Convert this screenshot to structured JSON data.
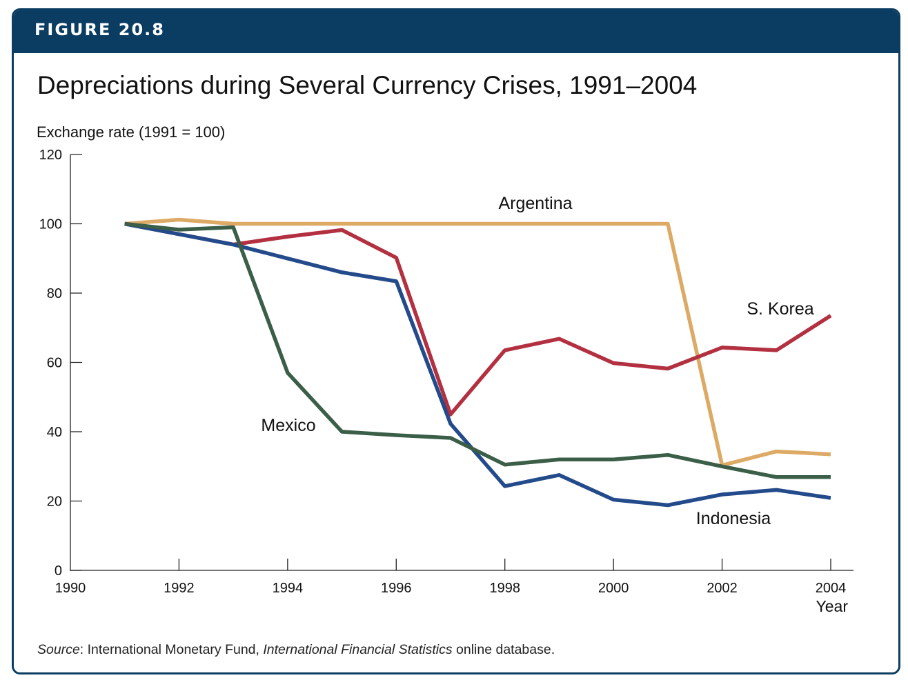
{
  "header": {
    "figure_label": "FIGURE 20.8"
  },
  "chart_data": {
    "type": "line",
    "title": "Depreciations during Several Currency Crises, 1991–2004",
    "ylabel": "Exchange rate (1991 = 100)",
    "xlabel": "Year",
    "xlim": [
      1990,
      2004
    ],
    "ylim": [
      0,
      120
    ],
    "x_ticks": [
      "1990",
      "1992",
      "1994",
      "1996",
      "1998",
      "2000",
      "2002",
      "2004"
    ],
    "y_ticks": [
      "0",
      "20",
      "40",
      "60",
      "80",
      "100",
      "120"
    ],
    "x": [
      1991,
      1992,
      1993,
      1994,
      1995,
      1996,
      1997,
      1998,
      1999,
      2000,
      2001,
      2002,
      2003,
      2004
    ],
    "series": [
      {
        "name": "Argentina",
        "color": "#ddaa66",
        "values": [
          100,
          101.2,
          100,
          100,
          100,
          100,
          100,
          100,
          100,
          100,
          100,
          30.3,
          34.3,
          33.5
        ]
      },
      {
        "name": "S. Korea",
        "color": "#b23040",
        "values": [
          100,
          97,
          94,
          96.3,
          98.2,
          90.2,
          45,
          63.5,
          66.8,
          59.8,
          58.2,
          64.3,
          63.5,
          73.5
        ]
      },
      {
        "name": "Indonesia",
        "color": "#234a8a",
        "values": [
          100,
          97,
          94,
          90,
          86,
          83.4,
          42.3,
          24.3,
          27.5,
          20.4,
          18.8,
          21.9,
          23.2,
          20.9
        ]
      },
      {
        "name": "Mexico",
        "color": "#3a5e47",
        "values": [
          100,
          98.3,
          99,
          57,
          40,
          39,
          38.2,
          30.5,
          32,
          32,
          33.3,
          30,
          26.9,
          26.9
        ]
      }
    ],
    "grid": false,
    "legend": "inline labels"
  },
  "source": {
    "label": "Source",
    "text1": ": International Monetary Fund, ",
    "publication": "International Financial Statistics",
    "text2": " online database."
  }
}
